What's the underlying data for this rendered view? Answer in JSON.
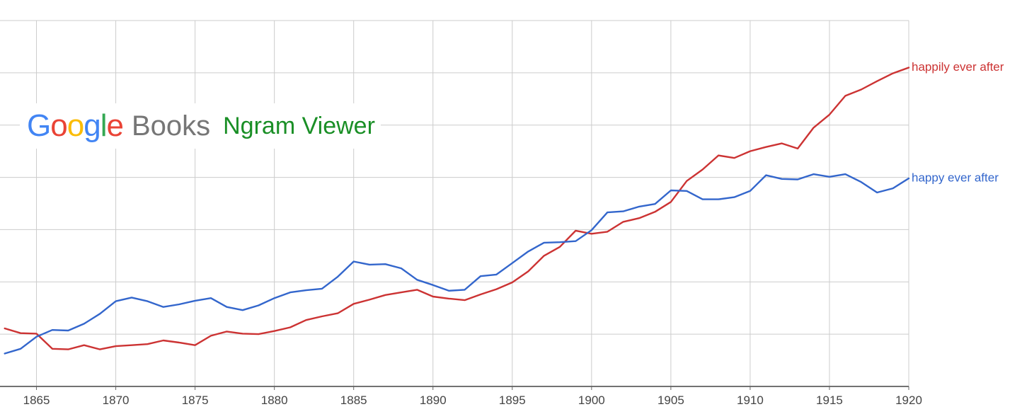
{
  "logo": {
    "google_letters": [
      {
        "char": "G",
        "color": "#4285F4"
      },
      {
        "char": "o",
        "color": "#EA4335"
      },
      {
        "char": "o",
        "color": "#FBBC05"
      },
      {
        "char": "g",
        "color": "#4285F4"
      },
      {
        "char": "l",
        "color": "#34A853"
      },
      {
        "char": "e",
        "color": "#EA4335"
      }
    ],
    "books": "Books",
    "viewer": "Ngram Viewer"
  },
  "chart_data": {
    "type": "line",
    "title": "",
    "xlabel": "",
    "ylabel": "",
    "xlim": [
      1862.7,
      1920
    ],
    "ylim": [
      0,
      7
    ],
    "grid": true,
    "x_ticks": [
      1865,
      1870,
      1875,
      1880,
      1885,
      1890,
      1895,
      1900,
      1905,
      1910,
      1915,
      1920
    ],
    "x": [
      1863,
      1864,
      1865,
      1866,
      1867,
      1868,
      1869,
      1870,
      1871,
      1872,
      1873,
      1874,
      1875,
      1876,
      1877,
      1878,
      1879,
      1880,
      1881,
      1882,
      1883,
      1884,
      1885,
      1886,
      1887,
      1888,
      1889,
      1890,
      1891,
      1892,
      1893,
      1894,
      1895,
      1896,
      1897,
      1898,
      1899,
      1900,
      1901,
      1902,
      1903,
      1904,
      1905,
      1906,
      1907,
      1908,
      1909,
      1910,
      1911,
      1912,
      1913,
      1914,
      1915,
      1916,
      1917,
      1918,
      1919,
      1920
    ],
    "series": [
      {
        "name": "happily ever after",
        "color": "#cc3333",
        "values": [
          1.11,
          1.02,
          1.01,
          0.72,
          0.71,
          0.79,
          0.71,
          0.77,
          0.79,
          0.81,
          0.88,
          0.84,
          0.79,
          0.97,
          1.05,
          1.01,
          1.0,
          1.06,
          1.13,
          1.27,
          1.34,
          1.4,
          1.58,
          1.66,
          1.75,
          1.8,
          1.85,
          1.72,
          1.68,
          1.65,
          1.76,
          1.86,
          1.99,
          2.2,
          2.5,
          2.67,
          2.98,
          2.92,
          2.96,
          3.15,
          3.22,
          3.34,
          3.53,
          3.93,
          4.15,
          4.42,
          4.37,
          4.5,
          4.58,
          4.65,
          4.55,
          4.95,
          5.2,
          5.56,
          5.68,
          5.84,
          5.99,
          6.1
        ]
      },
      {
        "name": "happy ever after",
        "color": "#3366cc",
        "values": [
          0.63,
          0.72,
          0.95,
          1.08,
          1.07,
          1.2,
          1.39,
          1.63,
          1.7,
          1.63,
          1.52,
          1.57,
          1.64,
          1.69,
          1.52,
          1.46,
          1.55,
          1.69,
          1.8,
          1.84,
          1.87,
          2.1,
          2.39,
          2.33,
          2.34,
          2.26,
          2.04,
          1.94,
          1.83,
          1.85,
          2.11,
          2.14,
          2.36,
          2.58,
          2.75,
          2.76,
          2.78,
          2.99,
          3.33,
          3.35,
          3.44,
          3.49,
          3.75,
          3.74,
          3.58,
          3.58,
          3.62,
          3.74,
          4.04,
          3.97,
          3.96,
          4.06,
          4.01,
          4.06,
          3.91,
          3.71,
          3.79,
          3.98
        ]
      }
    ]
  }
}
